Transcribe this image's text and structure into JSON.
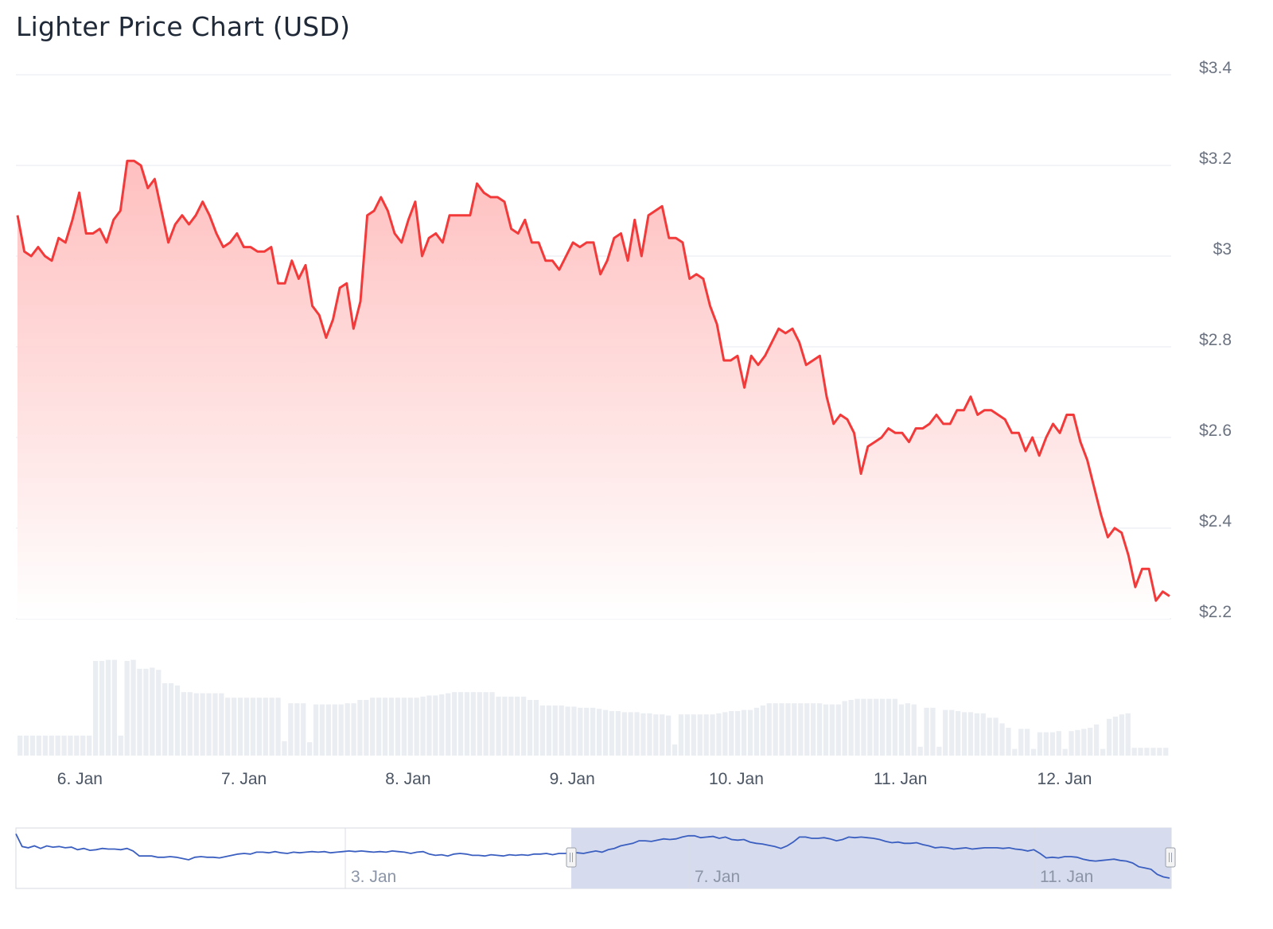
{
  "chart_data": {
    "type": "area",
    "title": "Lighter Price Chart (USD)",
    "xlabel": "",
    "ylabel": "",
    "ylim": [
      2.2,
      3.4
    ],
    "y_ticks": [
      "$2.2",
      "$2.4",
      "$2.6",
      "$2.8",
      "$3",
      "$3.2",
      "$3.4"
    ],
    "y_tick_values": [
      2.2,
      2.4,
      2.6,
      2.8,
      3.0,
      3.2,
      3.4
    ],
    "x_ticks": [
      "6. Jan",
      "7. Jan",
      "8. Jan",
      "9. Jan",
      "10. Jan",
      "11. Jan",
      "12. Jan"
    ],
    "x_range_days": [
      5.62,
      12.64
    ],
    "grid": true,
    "legend": "none",
    "line_color": "#f23a3a",
    "fill_color": "#ffc8c8",
    "volume_color": "#eaedf2",
    "series": [
      {
        "values": [
          3.09,
          3.01,
          3.0,
          3.02,
          3.0,
          2.99,
          3.04,
          3.03,
          3.08,
          3.14,
          3.05,
          3.05,
          3.06,
          3.03,
          3.08,
          3.1,
          3.21,
          3.21,
          3.2,
          3.15,
          3.17,
          3.1,
          3.03,
          3.07,
          3.09,
          3.07,
          3.09,
          3.12,
          3.09,
          3.05,
          3.02,
          3.03,
          3.05,
          3.02,
          3.02,
          3.01,
          3.01,
          3.02,
          2.94,
          2.94,
          2.99,
          2.95,
          2.98,
          2.89,
          2.87,
          2.82,
          2.86,
          2.93,
          2.94,
          2.84,
          2.9,
          3.09,
          3.1,
          3.13,
          3.1,
          3.05,
          3.03,
          3.08,
          3.12,
          3.0,
          3.04,
          3.05,
          3.03,
          3.09,
          3.09,
          3.09,
          3.09,
          3.16,
          3.14,
          3.13,
          3.13,
          3.12,
          3.06,
          3.05,
          3.08,
          3.03,
          3.03,
          2.99,
          2.99,
          2.97,
          3.0,
          3.03,
          3.02,
          3.03,
          3.03,
          2.96,
          2.99,
          3.04,
          3.05,
          2.99,
          3.08,
          3.0,
          3.09,
          3.1,
          3.11,
          3.04,
          3.04,
          3.03,
          2.95,
          2.96,
          2.95,
          2.89,
          2.85,
          2.77,
          2.77,
          2.78,
          2.71,
          2.78,
          2.76,
          2.78,
          2.81,
          2.84,
          2.83,
          2.84,
          2.81,
          2.76,
          2.77,
          2.78,
          2.69,
          2.63,
          2.65,
          2.64,
          2.61,
          2.52,
          2.58,
          2.59,
          2.6,
          2.62,
          2.61,
          2.61,
          2.59,
          2.62,
          2.62,
          2.63,
          2.65,
          2.63,
          2.63,
          2.66,
          2.66,
          2.69,
          2.65,
          2.66,
          2.66,
          2.65,
          2.64,
          2.61,
          2.61,
          2.57,
          2.6,
          2.56,
          2.6,
          2.63,
          2.61,
          2.65,
          2.65,
          2.59,
          2.55,
          2.49,
          2.43,
          2.38,
          2.4,
          2.39,
          2.34,
          2.27,
          2.31,
          2.31,
          2.24,
          2.26,
          2.25
        ]
      }
    ],
    "volume": [
      0.18,
      0.18,
      0.18,
      0.18,
      0.18,
      0.18,
      0.18,
      0.18,
      0.18,
      0.18,
      0.18,
      0.18,
      0.85,
      0.85,
      0.86,
      0.86,
      0.18,
      0.85,
      0.86,
      0.78,
      0.78,
      0.79,
      0.77,
      0.65,
      0.65,
      0.63,
      0.57,
      0.57,
      0.56,
      0.56,
      0.56,
      0.56,
      0.56,
      0.52,
      0.52,
      0.52,
      0.52,
      0.52,
      0.52,
      0.52,
      0.52,
      0.52,
      0.13,
      0.47,
      0.47,
      0.47,
      0.12,
      0.46,
      0.46,
      0.46,
      0.46,
      0.46,
      0.47,
      0.47,
      0.5,
      0.5,
      0.52,
      0.52,
      0.52,
      0.52,
      0.52,
      0.52,
      0.52,
      0.52,
      0.53,
      0.54,
      0.54,
      0.55,
      0.56,
      0.57,
      0.57,
      0.57,
      0.57,
      0.57,
      0.57,
      0.57,
      0.53,
      0.53,
      0.53,
      0.53,
      0.53,
      0.5,
      0.5,
      0.45,
      0.45,
      0.45,
      0.45,
      0.44,
      0.44,
      0.43,
      0.43,
      0.43,
      0.42,
      0.41,
      0.4,
      0.4,
      0.39,
      0.39,
      0.39,
      0.38,
      0.38,
      0.37,
      0.37,
      0.36,
      0.1,
      0.37,
      0.37,
      0.37,
      0.37,
      0.37,
      0.37,
      0.38,
      0.39,
      0.4,
      0.4,
      0.41,
      0.41,
      0.43,
      0.45,
      0.47,
      0.47,
      0.47,
      0.47,
      0.47,
      0.47,
      0.47,
      0.47,
      0.47,
      0.46,
      0.46,
      0.46,
      0.49,
      0.5,
      0.51,
      0.51,
      0.51,
      0.51,
      0.51,
      0.51,
      0.51,
      0.46,
      0.47,
      0.46,
      0.08,
      0.43,
      0.43,
      0.08,
      0.41,
      0.41,
      0.4,
      0.39,
      0.39,
      0.38,
      0.38,
      0.34,
      0.34,
      0.29,
      0.25,
      0.06,
      0.24,
      0.24,
      0.06,
      0.21,
      0.21,
      0.21,
      0.22,
      0.06,
      0.22,
      0.23,
      0.24,
      0.25,
      0.28,
      0.06,
      0.33,
      0.35,
      0.37,
      0.38,
      0.07,
      0.07,
      0.07,
      0.07,
      0.07,
      0.07
    ]
  },
  "navigator": {
    "x_ticks": [
      "3. Jan",
      "7. Jan",
      "11. Jan"
    ],
    "line_color": "#3b5fc0",
    "selection_color": "#d6dcee",
    "values": [
      2.95,
      2.75,
      2.73,
      2.76,
      2.72,
      2.76,
      2.74,
      2.75,
      2.73,
      2.74,
      2.7,
      2.72,
      2.69,
      2.7,
      2.72,
      2.71,
      2.71,
      2.7,
      2.72,
      2.68,
      2.6,
      2.6,
      2.6,
      2.58,
      2.58,
      2.59,
      2.58,
      2.56,
      2.54,
      2.58,
      2.59,
      2.58,
      2.58,
      2.57,
      2.59,
      2.61,
      2.63,
      2.64,
      2.63,
      2.66,
      2.66,
      2.65,
      2.67,
      2.65,
      2.64,
      2.66,
      2.65,
      2.66,
      2.67,
      2.66,
      2.67,
      2.65,
      2.66,
      2.67,
      2.68,
      2.67,
      2.68,
      2.67,
      2.66,
      2.67,
      2.66,
      2.68,
      2.67,
      2.66,
      2.64,
      2.66,
      2.67,
      2.63,
      2.61,
      2.62,
      2.6,
      2.63,
      2.64,
      2.63,
      2.61,
      2.61,
      2.6,
      2.62,
      2.61,
      2.6,
      2.62,
      2.61,
      2.62,
      2.61,
      2.63,
      2.63,
      2.64,
      2.62,
      2.64,
      2.64,
      2.65,
      2.65,
      2.64,
      2.66,
      2.68,
      2.66,
      2.7,
      2.72,
      2.76,
      2.78,
      2.8,
      2.84,
      2.84,
      2.83,
      2.85,
      2.87,
      2.86,
      2.87,
      2.9,
      2.92,
      2.92,
      2.89,
      2.9,
      2.91,
      2.88,
      2.9,
      2.86,
      2.85,
      2.86,
      2.82,
      2.8,
      2.79,
      2.77,
      2.75,
      2.72,
      2.76,
      2.82,
      2.9,
      2.9,
      2.88,
      2.88,
      2.89,
      2.87,
      2.84,
      2.86,
      2.9,
      2.89,
      2.9,
      2.89,
      2.88,
      2.86,
      2.83,
      2.81,
      2.82,
      2.8,
      2.8,
      2.81,
      2.78,
      2.76,
      2.73,
      2.74,
      2.73,
      2.71,
      2.72,
      2.73,
      2.71,
      2.72,
      2.73,
      2.73,
      2.73,
      2.72,
      2.73,
      2.71,
      2.7,
      2.68,
      2.7,
      2.64,
      2.57,
      2.58,
      2.57,
      2.59,
      2.59,
      2.58,
      2.55,
      2.53,
      2.52,
      2.53,
      2.54,
      2.55,
      2.53,
      2.52,
      2.49,
      2.43,
      2.41,
      2.39,
      2.31,
      2.27,
      2.25
    ]
  }
}
